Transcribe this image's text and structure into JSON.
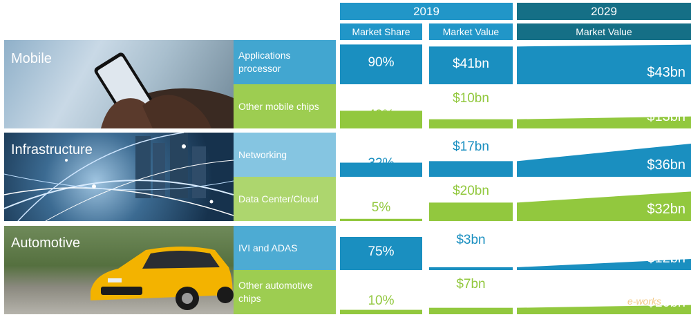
{
  "colors": {
    "blue": "#1a8fc0",
    "green": "#92c83e",
    "dark_teal": "#156f86",
    "header_blue": "#2196c8"
  },
  "headers": {
    "year_2019": "2019",
    "year_2029": "2029",
    "market_share": "Market Share",
    "market_value": "Market Value",
    "market_value_2029": "Market Value"
  },
  "segments": [
    {
      "name": "Mobile",
      "image": "smartphone-photo"
    },
    {
      "name": "Infrastructure",
      "image": "city-network-photo"
    },
    {
      "name": "Automotive",
      "image": "yellow-car-photo"
    }
  ],
  "chart_data": {
    "type": "table",
    "rows": [
      {
        "segment": "Mobile",
        "category": "Applications\nprocessor",
        "share_2019": "90%",
        "share_2019_pct": 90,
        "value_2019": "$41bn",
        "value_2019_bn": 41,
        "value_2029": "$43bn",
        "value_2029_bn": 43,
        "color": "blue"
      },
      {
        "segment": "Mobile",
        "category": "Other mobile chips",
        "share_2019": "40%",
        "share_2019_pct": 40,
        "value_2019": "$10bn",
        "value_2019_bn": 10,
        "value_2029": "$13bn",
        "value_2029_bn": 13,
        "color": "green"
      },
      {
        "segment": "Infrastructure",
        "category": "Networking",
        "share_2019": "32%",
        "share_2019_pct": 32,
        "value_2019": "$17bn",
        "value_2019_bn": 17,
        "value_2029": "$36bn",
        "value_2029_bn": 36,
        "color": "blue"
      },
      {
        "segment": "Infrastructure",
        "category": "Data Center/Cloud",
        "share_2019": "5%",
        "share_2019_pct": 5,
        "value_2019": "$20bn",
        "value_2019_bn": 20,
        "value_2029": "$32bn",
        "value_2029_bn": 32,
        "color": "green"
      },
      {
        "segment": "Automotive",
        "category": "IVI and ADAS",
        "share_2019": "75%",
        "share_2019_pct": 75,
        "value_2019": "$3bn",
        "value_2019_bn": 3,
        "value_2029": "$12bn",
        "value_2029_bn": 12,
        "color": "blue"
      },
      {
        "segment": "Automotive",
        "category": "Other automotive\nchips",
        "share_2019": "10%",
        "share_2019_pct": 10,
        "value_2019": "$7bn",
        "value_2019_bn": 7,
        "value_2029": "$10bn",
        "value_2029_bn": 10,
        "color": "green"
      }
    ]
  },
  "watermark": "e-works"
}
